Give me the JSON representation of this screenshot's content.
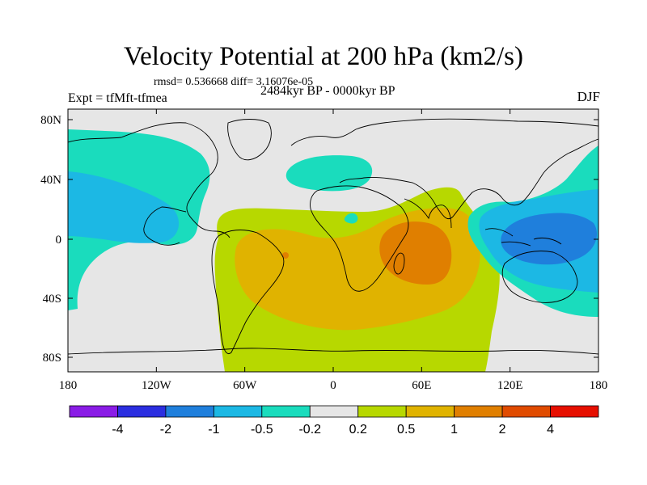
{
  "figure": {
    "title": "Velocity Potential at 200 hPa (km2/s)",
    "stats_line": "rmsd= 0.536668 diff= 3.16076e-05",
    "experiment_label": "Expt = tfMft-tfmea",
    "period_label": "2484kyr BP - 0000kyr BP",
    "season_label": "DJF"
  },
  "axes": {
    "lon_labels": [
      "180",
      "120W",
      "60W",
      "0",
      "60E",
      "120E",
      "180"
    ],
    "lat_labels": [
      "80N",
      "40N",
      "0",
      "40S",
      "80S"
    ]
  },
  "colorbar": {
    "labels": [
      "-4",
      "-2",
      "-1",
      "-0.5",
      "-0.2",
      "0.2",
      "0.5",
      "1",
      "2",
      "4"
    ],
    "colors": [
      "#8a1ce6",
      "#2b2ee0",
      "#1f7fdc",
      "#1cb8e4",
      "#1adcbd",
      "#e6e6e6",
      "#b7d800",
      "#e0b300",
      "#e07f00",
      "#e04b00",
      "#e60f00"
    ]
  },
  "palette": {
    "neutral": "#e6e6e6",
    "pos_low": "#b7d800",
    "pos_mid": "#e0b300",
    "pos_high": "#e07f00",
    "neg_low": "#1adcbd",
    "neg_mid": "#1cb8e4",
    "neg_high": "#1f7fdc",
    "coast": "#000000"
  }
}
